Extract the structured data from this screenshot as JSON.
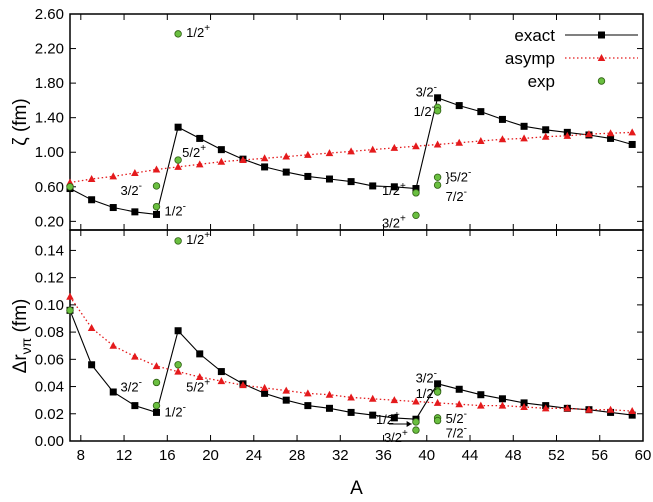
{
  "chart_data": [
    {
      "type": "line",
      "ylabel": "ζ (fm)",
      "xlim": [
        7,
        60
      ],
      "ylim": [
        0.1,
        2.6
      ],
      "yticks": [
        "0.20",
        "0.60",
        "1.00",
        "1.40",
        "1.80",
        "2.20",
        "2.60"
      ],
      "legend": {
        "placement": "top-right",
        "entries": [
          "exact",
          "asymp",
          "exp"
        ]
      },
      "series": [
        {
          "name": "exact",
          "color": "#000000",
          "marker": "square",
          "line": "solid",
          "points": [
            [
              7,
              0.58
            ],
            [
              9,
              0.45
            ],
            [
              11,
              0.36
            ],
            [
              13,
              0.31
            ],
            [
              15,
              0.28
            ],
            [
              17,
              1.29
            ],
            [
              19,
              1.16
            ],
            [
              21,
              1.03
            ],
            [
              23,
              0.92
            ],
            [
              25,
              0.83
            ],
            [
              27,
              0.77
            ],
            [
              29,
              0.72
            ],
            [
              31,
              0.69
            ],
            [
              33,
              0.66
            ],
            [
              35,
              0.61
            ],
            [
              37,
              0.6
            ],
            [
              39,
              0.58
            ],
            [
              41,
              1.63
            ],
            [
              43,
              1.54
            ],
            [
              45,
              1.47
            ],
            [
              47,
              1.38
            ],
            [
              49,
              1.3
            ],
            [
              51,
              1.26
            ],
            [
              53,
              1.23
            ],
            [
              55,
              1.2
            ],
            [
              57,
              1.16
            ],
            [
              59,
              1.09
            ]
          ]
        },
        {
          "name": "asymp",
          "color": "#e41a1c",
          "marker": "triangle",
          "line": "dotted",
          "points": [
            [
              7,
              0.65
            ],
            [
              9,
              0.69
            ],
            [
              11,
              0.72
            ],
            [
              13,
              0.76
            ],
            [
              15,
              0.8
            ],
            [
              17,
              0.83
            ],
            [
              19,
              0.86
            ],
            [
              21,
              0.89
            ],
            [
              23,
              0.91
            ],
            [
              25,
              0.93
            ],
            [
              27,
              0.95
            ],
            [
              29,
              0.97
            ],
            [
              31,
              0.99
            ],
            [
              33,
              1.01
            ],
            [
              35,
              1.03
            ],
            [
              37,
              1.05
            ],
            [
              39,
              1.07
            ],
            [
              41,
              1.09
            ],
            [
              43,
              1.11
            ],
            [
              45,
              1.13
            ],
            [
              47,
              1.15
            ],
            [
              49,
              1.16
            ],
            [
              51,
              1.18
            ],
            [
              53,
              1.19
            ],
            [
              55,
              1.21
            ],
            [
              57,
              1.22
            ],
            [
              59,
              1.23
            ]
          ]
        },
        {
          "name": "exp",
          "color": "#6abf40",
          "marker": "circle",
          "line": "none",
          "points": [
            [
              7,
              0.6
            ],
            [
              15,
              0.61
            ],
            [
              15,
              0.37
            ],
            [
              17,
              2.37
            ],
            [
              17,
              0.91
            ],
            [
              39,
              0.53
            ],
            [
              39,
              0.27
            ],
            [
              41,
              1.52
            ],
            [
              41,
              1.48
            ],
            [
              41,
              0.71
            ],
            [
              41,
              0.62
            ]
          ]
        }
      ],
      "annotations": [
        {
          "text": "1/2",
          "sup": "+",
          "x": 17,
          "y": 2.37
        },
        {
          "text": "3/2",
          "sup": "-",
          "x": 15,
          "y": 0.61
        },
        {
          "text": "5/2",
          "sup": "+",
          "x": 17,
          "y": 0.91
        },
        {
          "text": "1/2",
          "sup": "-",
          "x": 15,
          "y": 0.37
        },
        {
          "text": "3/2",
          "sup": "-",
          "x": 41,
          "y": 1.52
        },
        {
          "text": "1/2",
          "sup": "-",
          "x": 41,
          "y": 1.48
        },
        {
          "text": "}5/2",
          "sup": "-",
          "x": 41,
          "y": 0.71
        },
        {
          "text": "7/2",
          "sup": "-",
          "x": 41,
          "y": 0.62
        },
        {
          "text": "1/2",
          "sup": "+",
          "x": 39,
          "y": 0.53
        },
        {
          "text": "3/2",
          "sup": "+",
          "x": 39,
          "y": 0.27
        }
      ]
    },
    {
      "type": "line",
      "xlabel": "A",
      "ylabel": "Δr",
      "ylabel_sub": "νπ",
      "ylabel_unit": " (fm)",
      "xlim": [
        7,
        60
      ],
      "ylim": [
        0,
        0.155
      ],
      "xticks": [
        "8",
        "12",
        "16",
        "20",
        "24",
        "28",
        "32",
        "36",
        "40",
        "44",
        "48",
        "52",
        "56",
        "60"
      ],
      "yticks": [
        "0.00",
        "0.02",
        "0.04",
        "0.06",
        "0.08",
        "0.10",
        "0.12",
        "0.14"
      ],
      "series": [
        {
          "name": "exact",
          "color": "#000000",
          "marker": "square",
          "line": "solid",
          "points": [
            [
              7,
              0.096
            ],
            [
              9,
              0.056
            ],
            [
              11,
              0.036
            ],
            [
              13,
              0.026
            ],
            [
              15,
              0.021
            ],
            [
              17,
              0.081
            ],
            [
              19,
              0.064
            ],
            [
              21,
              0.051
            ],
            [
              23,
              0.042
            ],
            [
              25,
              0.035
            ],
            [
              27,
              0.03
            ],
            [
              29,
              0.026
            ],
            [
              31,
              0.024
            ],
            [
              33,
              0.021
            ],
            [
              35,
              0.019
            ],
            [
              37,
              0.017
            ],
            [
              39,
              0.016
            ],
            [
              41,
              0.042
            ],
            [
              43,
              0.038
            ],
            [
              45,
              0.034
            ],
            [
              47,
              0.031
            ],
            [
              49,
              0.028
            ],
            [
              51,
              0.026
            ],
            [
              53,
              0.024
            ],
            [
              55,
              0.023
            ],
            [
              57,
              0.021
            ],
            [
              59,
              0.019
            ]
          ]
        },
        {
          "name": "asymp",
          "color": "#e41a1c",
          "marker": "triangle",
          "line": "dotted",
          "points": [
            [
              7,
              0.106
            ],
            [
              9,
              0.083
            ],
            [
              11,
              0.07
            ],
            [
              13,
              0.062
            ],
            [
              15,
              0.055
            ],
            [
              17,
              0.051
            ],
            [
              19,
              0.047
            ],
            [
              21,
              0.044
            ],
            [
              23,
              0.041
            ],
            [
              25,
              0.039
            ],
            [
              27,
              0.037
            ],
            [
              29,
              0.035
            ],
            [
              31,
              0.034
            ],
            [
              33,
              0.032
            ],
            [
              35,
              0.031
            ],
            [
              37,
              0.03
            ],
            [
              39,
              0.029
            ],
            [
              41,
              0.028
            ],
            [
              43,
              0.027
            ],
            [
              45,
              0.026
            ],
            [
              47,
              0.026
            ],
            [
              49,
              0.025
            ],
            [
              51,
              0.024
            ],
            [
              53,
              0.024
            ],
            [
              55,
              0.023
            ],
            [
              57,
              0.023
            ],
            [
              59,
              0.022
            ]
          ]
        },
        {
          "name": "exp",
          "color": "#6abf40",
          "marker": "circle",
          "line": "none",
          "points": [
            [
              7,
              0.096
            ],
            [
              15,
              0.043
            ],
            [
              15,
              0.026
            ],
            [
              17,
              0.147
            ],
            [
              17,
              0.056
            ],
            [
              39,
              0.014
            ],
            [
              39,
              0.008
            ],
            [
              41,
              0.037
            ],
            [
              41,
              0.036
            ],
            [
              41,
              0.017
            ],
            [
              41,
              0.015
            ]
          ]
        }
      ],
      "annotations": [
        {
          "text": "1/2",
          "sup": "+",
          "x": 17,
          "y": 0.147
        },
        {
          "text": "3/2",
          "sup": "-",
          "x": 15,
          "y": 0.043
        },
        {
          "text": "5/2",
          "sup": "+",
          "x": 17,
          "y": 0.043
        },
        {
          "text": "1/2",
          "sup": "-",
          "x": 15,
          "y": 0.026
        },
        {
          "text": "3/2",
          "sup": "-",
          "x": 41,
          "y": 0.037
        },
        {
          "text": "1/2",
          "sup": "-",
          "x": 41,
          "y": 0.036
        },
        {
          "text": "5/2",
          "sup": "-",
          "x": 41,
          "y": 0.017
        },
        {
          "text": "7/2",
          "sup": "-",
          "x": 41,
          "y": 0.015
        },
        {
          "text": "1/2",
          "sup": "+",
          "x": 39,
          "y": 0.014
        },
        {
          "text": "3/2",
          "sup": "+",
          "x": 39,
          "y": 0.008
        }
      ]
    }
  ]
}
